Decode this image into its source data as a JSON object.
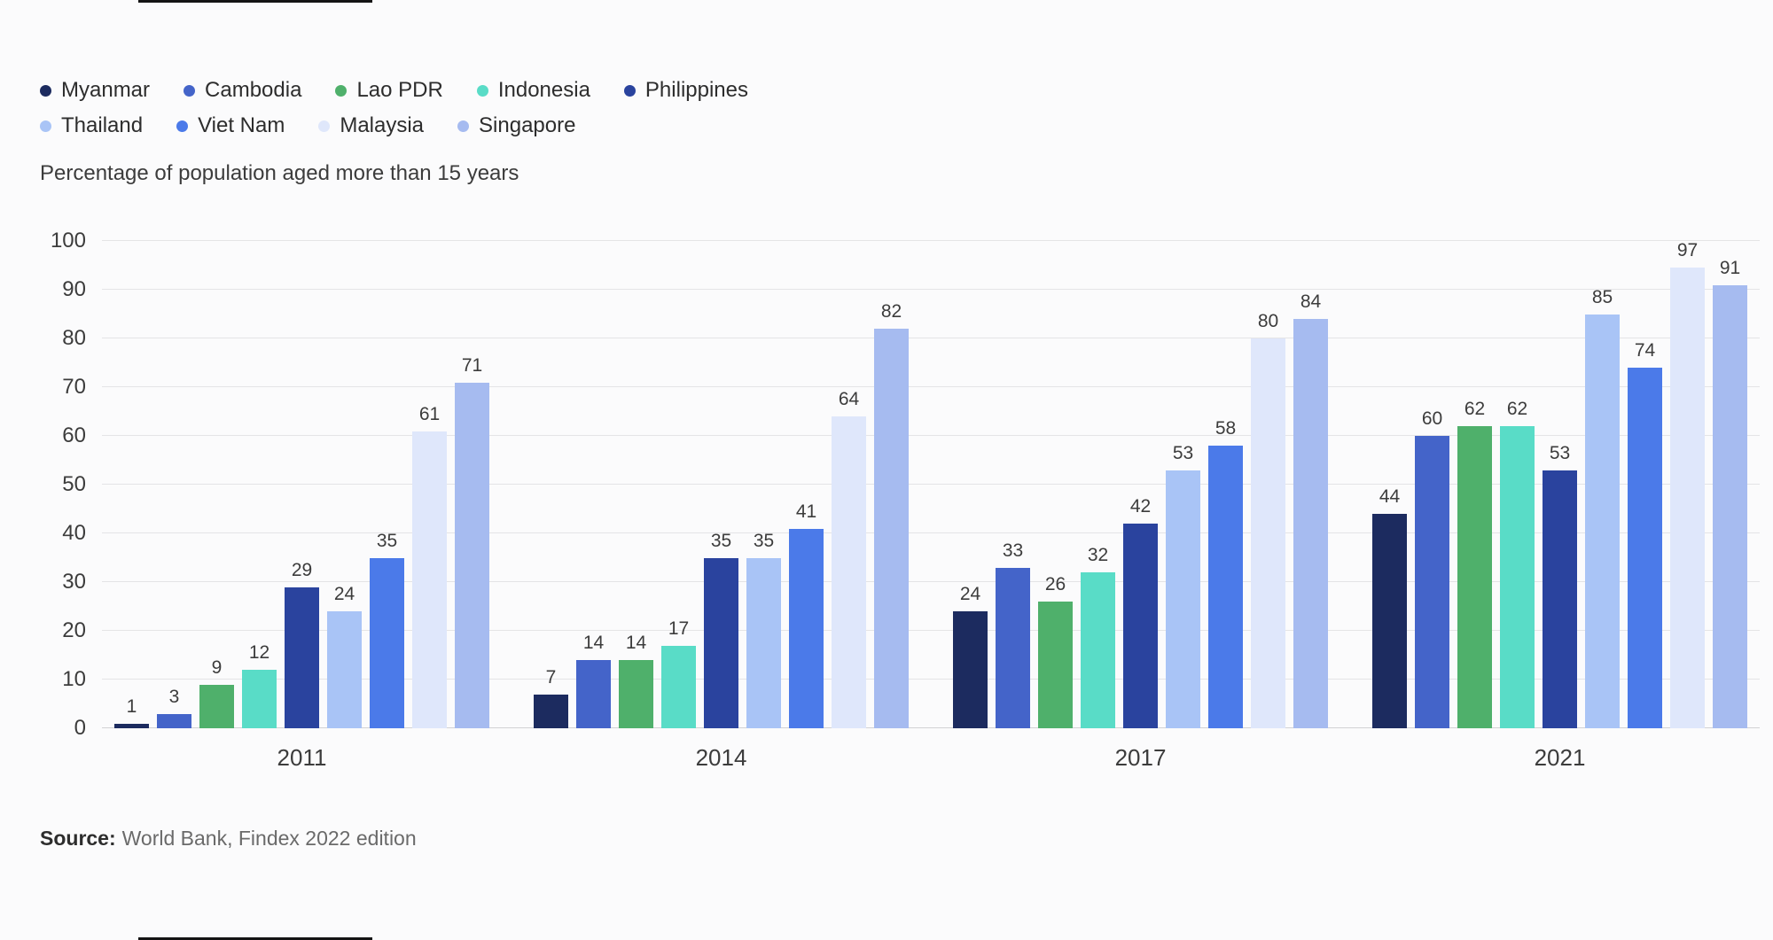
{
  "chart_data": {
    "type": "bar",
    "subtitle": "Percentage of population aged more than 15 years",
    "categories": [
      "2011",
      "2014",
      "2017",
      "2021"
    ],
    "series": [
      {
        "name": "Myanmar",
        "color": "#1c2b5f",
        "values": [
          1,
          7,
          24,
          44
        ]
      },
      {
        "name": "Cambodia",
        "color": "#4464c9",
        "values": [
          3,
          14,
          33,
          60
        ]
      },
      {
        "name": "Lao PDR",
        "color": "#4fb06b",
        "values": [
          9,
          14,
          26,
          62
        ]
      },
      {
        "name": "Indonesia",
        "color": "#59dcc7",
        "values": [
          12,
          17,
          32,
          62
        ]
      },
      {
        "name": "Philippines",
        "color": "#2a439e",
        "values": [
          29,
          35,
          42,
          53
        ]
      },
      {
        "name": "Thailand",
        "color": "#a9c4f6",
        "values": [
          24,
          35,
          53,
          85
        ]
      },
      {
        "name": "Viet Nam",
        "color": "#4b7ae9",
        "values": [
          35,
          41,
          58,
          74
        ]
      },
      {
        "name": "Malaysia",
        "color": "#dfe7fb",
        "values": [
          61,
          64,
          80,
          97
        ]
      },
      {
        "name": "Singapore",
        "color": "#a6bbf0",
        "values": [
          71,
          82,
          84,
          91
        ]
      }
    ],
    "ylim": [
      0,
      100
    ],
    "yticks": [
      0,
      10,
      20,
      30,
      40,
      50,
      60,
      70,
      80,
      90,
      100
    ],
    "grid": true,
    "legend_position": "top-left",
    "legend_rows": [
      [
        0,
        1,
        2,
        3,
        4
      ],
      [
        5,
        6,
        7,
        8
      ]
    ],
    "value_labels": true,
    "xlabel": "",
    "ylabel": ""
  },
  "source": {
    "label": "Source:",
    "text": "World Bank, Findex 2022 edition"
  }
}
